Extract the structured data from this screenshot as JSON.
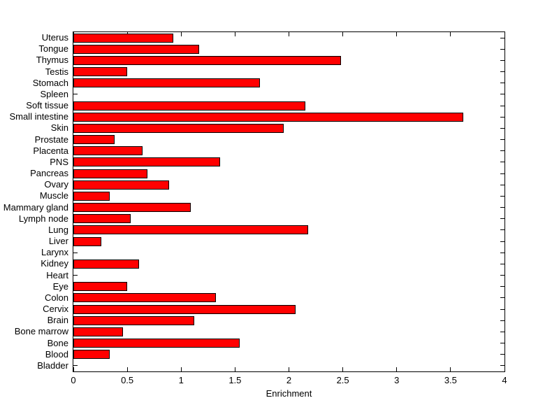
{
  "chart_data": {
    "type": "bar",
    "orientation": "horizontal",
    "title": "",
    "xlabel": "Enrichment",
    "ylabel": "",
    "xlim": [
      0,
      4
    ],
    "xtick_labels": [
      "0",
      "0.5",
      "1",
      "1.5",
      "2",
      "2.5",
      "3",
      "3.5",
      "4"
    ],
    "xtick_values": [
      0,
      0.5,
      1,
      1.5,
      2,
      2.5,
      3,
      3.5,
      4
    ],
    "grid": "off",
    "legend": "none",
    "bar_color": "#ff0000",
    "bar_edge_color": "#000000",
    "axis_color": "#000000",
    "background_color": "#ffffff",
    "categories_top_to_bottom": [
      "Uterus",
      "Tongue",
      "Thymus",
      "Testis",
      "Stomach",
      "Spleen",
      "Soft tissue",
      "Small intestine",
      "Skin",
      "Prostate",
      "Placenta",
      "PNS",
      "Pancreas",
      "Ovary",
      "Muscle",
      "Mammary gland",
      "Lymph node",
      "Lung",
      "Liver",
      "Larynx",
      "Kidney",
      "Heart",
      "Eye",
      "Colon",
      "Cervix",
      "Brain",
      "Bone marrow",
      "Bone",
      "Blood",
      "Bladder"
    ],
    "values": [
      0.93,
      1.17,
      2.48,
      0.5,
      1.73,
      0,
      2.15,
      3.62,
      1.95,
      0.38,
      0.64,
      1.36,
      0.69,
      0.89,
      0.34,
      1.09,
      0.53,
      2.18,
      0.26,
      0,
      0.61,
      0,
      0.5,
      1.32,
      2.06,
      1.12,
      0.46,
      1.54,
      0.34,
      0
    ]
  }
}
